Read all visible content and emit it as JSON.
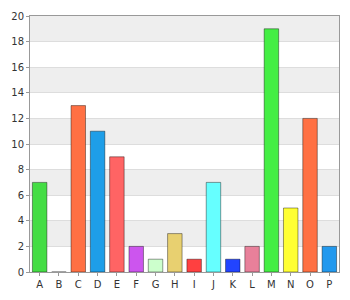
{
  "chart_data": {
    "type": "bar",
    "categories": [
      "A",
      "B",
      "C",
      "D",
      "E",
      "F",
      "G",
      "H",
      "I",
      "J",
      "K",
      "L",
      "M",
      "N",
      "O",
      "P"
    ],
    "values": [
      7,
      0,
      13,
      11,
      9,
      2,
      1,
      3,
      1,
      7,
      1,
      2,
      19,
      5,
      12,
      2
    ],
    "colors": [
      "#44dd44",
      "#ff7043",
      "#ff7043",
      "#1e9ee8",
      "#ff6464",
      "#cc55ee",
      "#ccffcc",
      "#e8d070",
      "#ff4040",
      "#66ffff",
      "#2244ff",
      "#e8809a",
      "#44ee44",
      "#ffff33",
      "#ff7043",
      "#2299ee"
    ],
    "ylim": [
      0,
      20
    ],
    "yticks": [
      0,
      2,
      4,
      6,
      8,
      10,
      12,
      14,
      16,
      18,
      20
    ],
    "grid": true
  }
}
